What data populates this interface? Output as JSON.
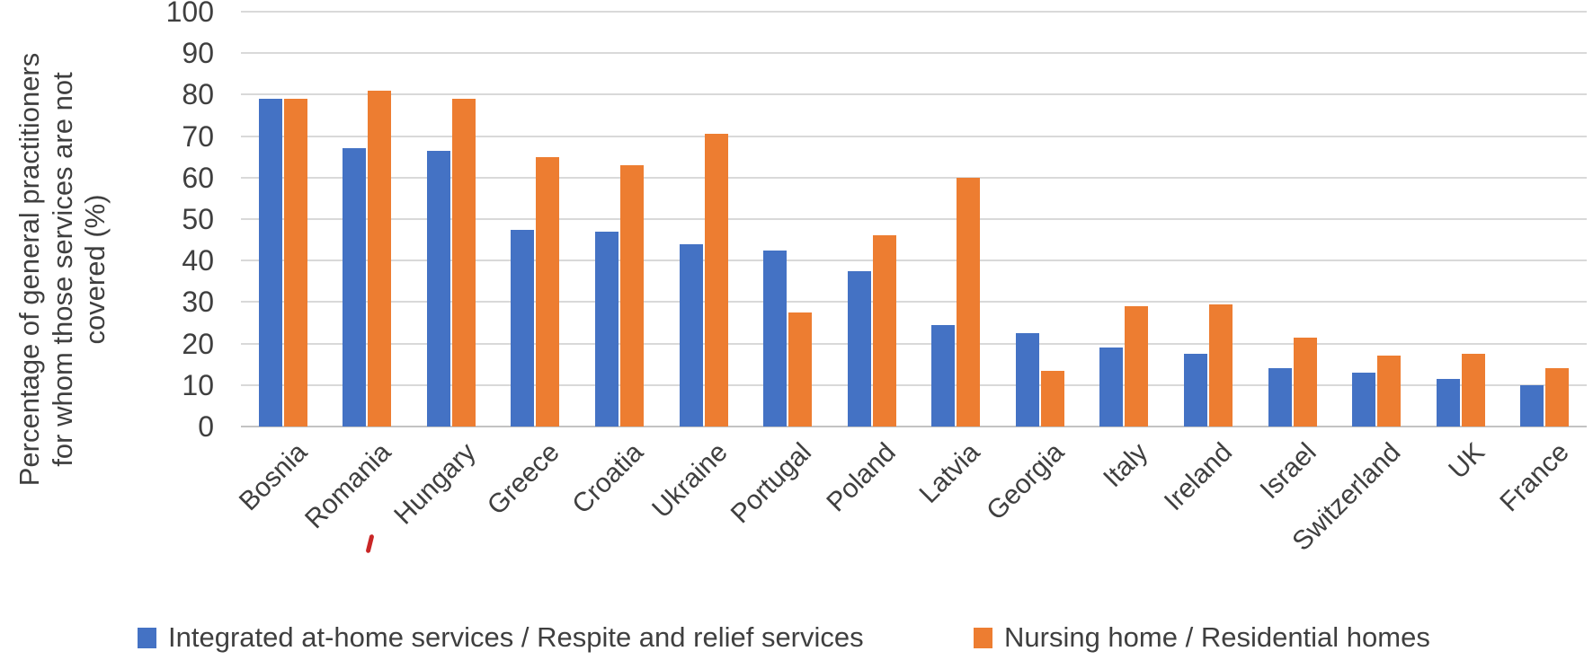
{
  "chart_data": {
    "type": "bar",
    "title": "",
    "ylabel": "Percentage of general practitioners for whom those services are not covered (%)",
    "ylabel_lines": [
      "Percentage of general practitioners",
      "for whom those services are not",
      "covered (%)"
    ],
    "categories": [
      "Bosnia",
      "Romania",
      "Hungary",
      "Greece",
      "Croatia",
      "Ukraine",
      "Portugal",
      "Poland",
      "Latvia",
      "Georgia",
      "Italy",
      "Ireland",
      "Israel",
      "Switzerland",
      "UK",
      "France"
    ],
    "series": [
      {
        "name": "Integrated at-home services / Respite and relief services",
        "color": "#4472C4",
        "values": [
          79,
          67,
          66.5,
          47.5,
          47,
          44,
          42.5,
          37.5,
          24.5,
          22.5,
          19,
          17.5,
          14,
          13,
          11.5,
          10
        ]
      },
      {
        "name": "Nursing home / Residential homes",
        "color": "#ED7D31",
        "values": [
          79,
          81,
          79,
          65,
          63,
          70.5,
          27.5,
          46,
          60,
          13.5,
          29,
          29.5,
          21.5,
          17,
          17.5,
          14
        ]
      }
    ],
    "ylim": [
      0,
      100
    ],
    "yticks": [
      100,
      90,
      80,
      70,
      60,
      50,
      40,
      30,
      20,
      10,
      0
    ],
    "grid": true,
    "legend_position": "bottom"
  },
  "styles": {
    "text_color": "#3f3f3f",
    "gridline_color": "#d9d9d9",
    "axis_line_color": "#c3c3c3",
    "background": "#ffffff"
  },
  "artifacts": {
    "red_spellcheck_mark": "small red squiggle under the H of Hungary"
  }
}
